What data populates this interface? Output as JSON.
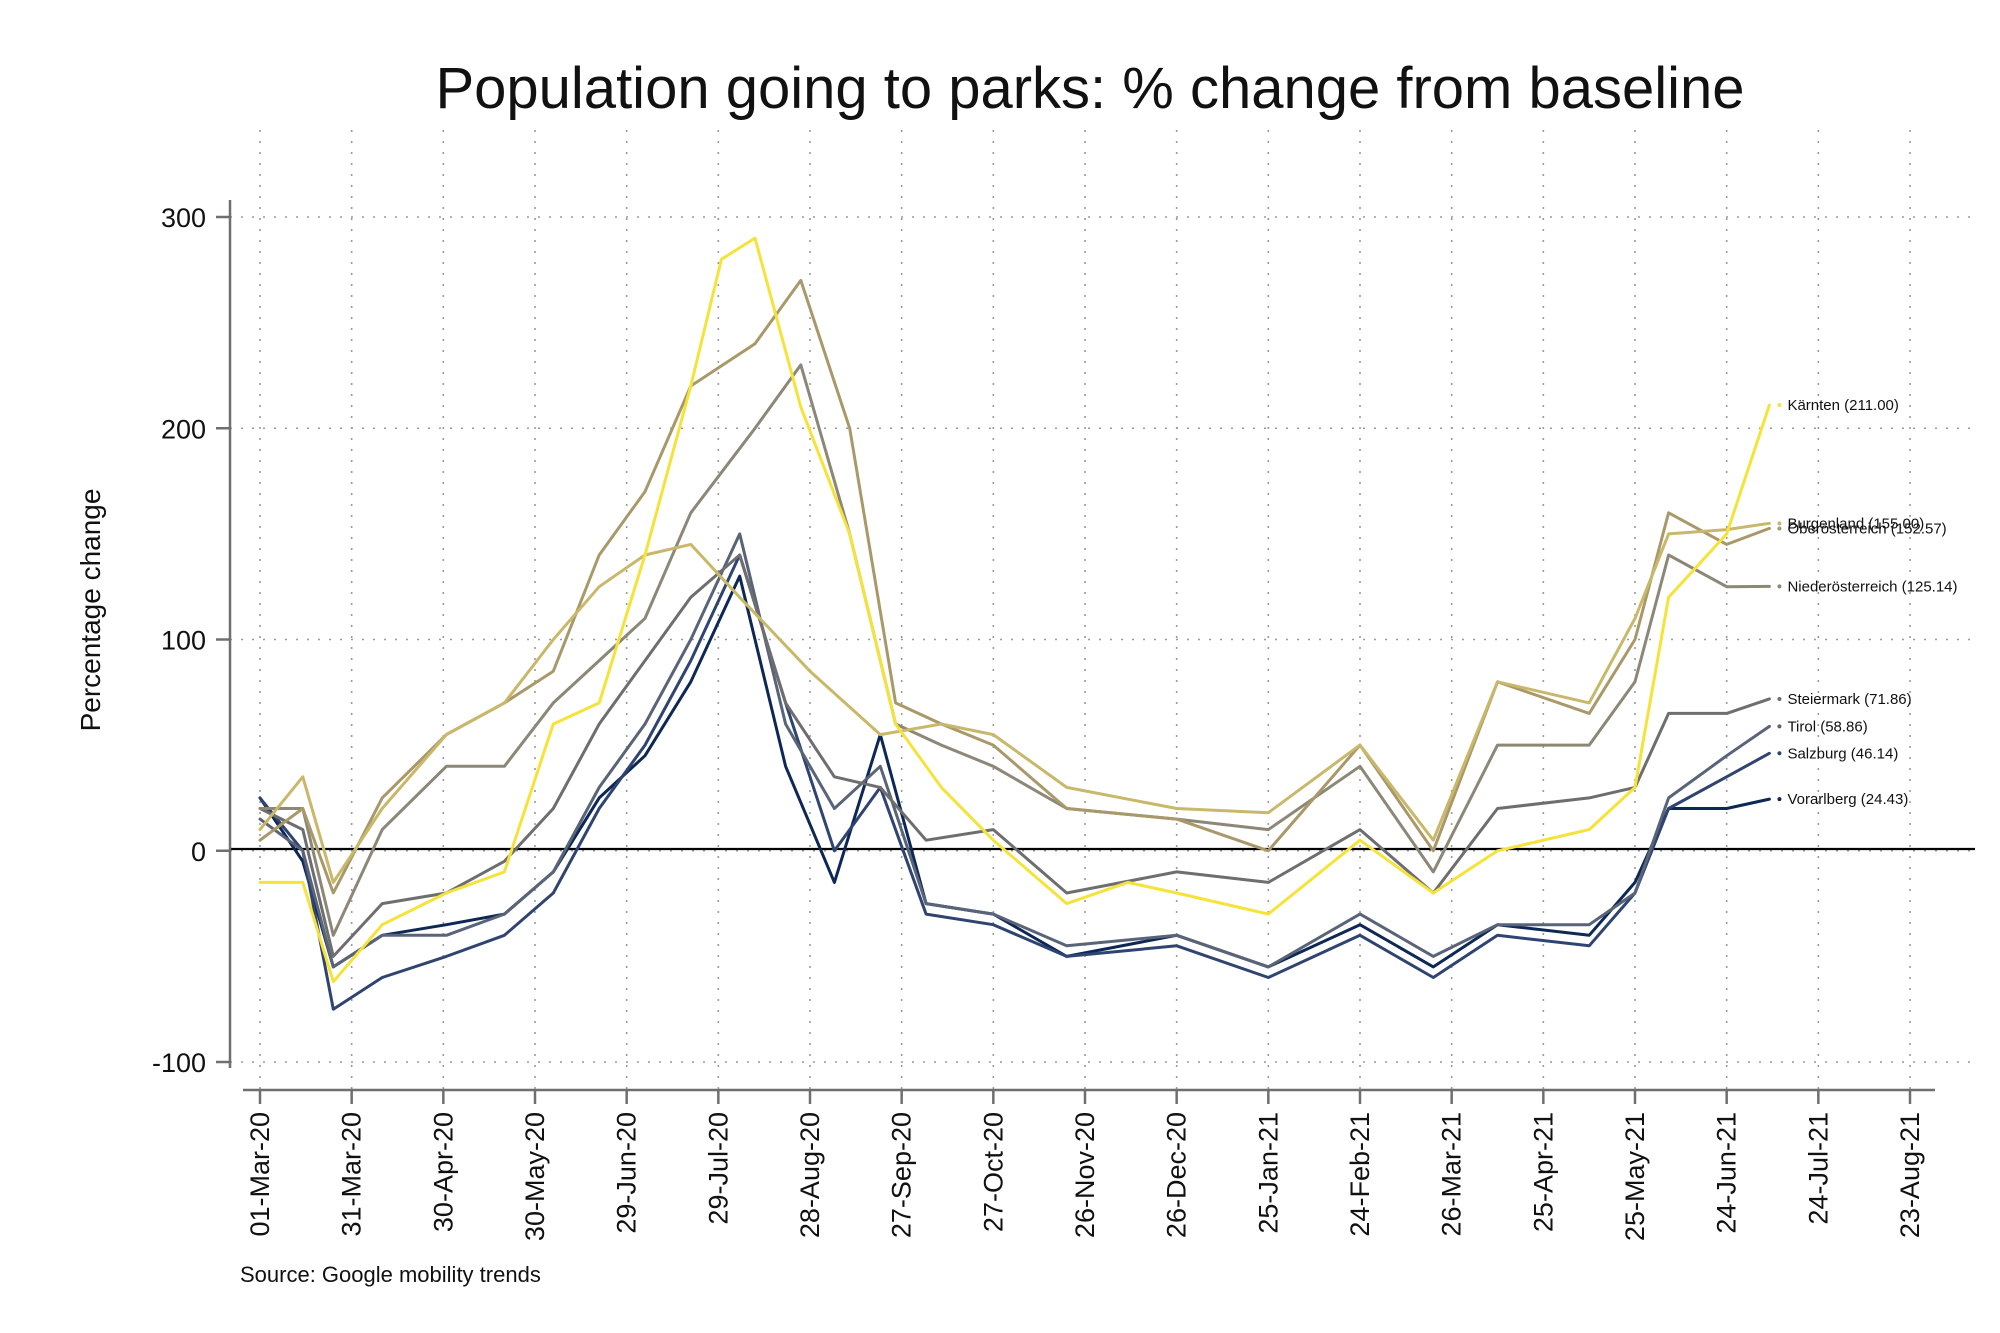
{
  "chart_data": {
    "type": "line",
    "title": "Population going to parks: % change from baseline",
    "ylabel": "Percentage change",
    "xlabel": "",
    "source": "Source: Google mobility trends",
    "ylim": [
      -100,
      300
    ],
    "yticks": [
      -100,
      0,
      100,
      200,
      300
    ],
    "xlim": [
      "2020-03-01",
      "2021-08-23"
    ],
    "xticks": [
      "01-Mar-20",
      "31-Mar-20",
      "30-Apr-20",
      "30-May-20",
      "29-Jun-20",
      "29-Jul-20",
      "28-Aug-20",
      "27-Sep-20",
      "27-Oct-20",
      "26-Nov-20",
      "26-Dec-20",
      "25-Jan-21",
      "24-Feb-21",
      "26-Mar-21",
      "25-Apr-21",
      "25-May-21",
      "24-Jun-21",
      "24-Jul-21",
      "23-Aug-21"
    ],
    "grid": true,
    "legend": "end-of-line labels",
    "series": [
      {
        "name": "Kärnten",
        "label": "Kärnten (211.00)",
        "color": "#f5e33a",
        "points": [
          [
            "2020-03-01",
            -15
          ],
          [
            "2020-03-15",
            -15
          ],
          [
            "2020-03-25",
            -62
          ],
          [
            "2020-04-10",
            -35
          ],
          [
            "2020-05-01",
            -20
          ],
          [
            "2020-05-20",
            -10
          ],
          [
            "2020-06-05",
            60
          ],
          [
            "2020-06-20",
            70
          ],
          [
            "2020-07-05",
            140
          ],
          [
            "2020-07-20",
            220
          ],
          [
            "2020-07-30",
            280
          ],
          [
            "2020-08-10",
            290
          ],
          [
            "2020-08-25",
            210
          ],
          [
            "2020-09-10",
            150
          ],
          [
            "2020-09-25",
            60
          ],
          [
            "2020-10-10",
            30
          ],
          [
            "2020-10-27",
            5
          ],
          [
            "2020-11-20",
            -25
          ],
          [
            "2020-12-10",
            -15
          ],
          [
            "2020-12-26",
            -20
          ],
          [
            "2021-01-25",
            -30
          ],
          [
            "2021-02-24",
            5
          ],
          [
            "2021-03-20",
            -20
          ],
          [
            "2021-04-10",
            0
          ],
          [
            "2021-05-10",
            10
          ],
          [
            "2021-05-25",
            30
          ],
          [
            "2021-06-05",
            120
          ],
          [
            "2021-06-24",
            150
          ],
          [
            "2021-07-08",
            211
          ]
        ]
      },
      {
        "name": "Burgenland",
        "label": "Burgenland (155.00)",
        "color": "#c9b86a",
        "points": [
          [
            "2020-03-01",
            10
          ],
          [
            "2020-03-15",
            35
          ],
          [
            "2020-03-25",
            -15
          ],
          [
            "2020-04-10",
            20
          ],
          [
            "2020-05-01",
            55
          ],
          [
            "2020-05-20",
            70
          ],
          [
            "2020-06-05",
            100
          ],
          [
            "2020-06-20",
            125
          ],
          [
            "2020-07-05",
            140
          ],
          [
            "2020-07-20",
            145
          ],
          [
            "2020-08-05",
            120
          ],
          [
            "2020-08-28",
            85
          ],
          [
            "2020-09-20",
            55
          ],
          [
            "2020-10-10",
            60
          ],
          [
            "2020-10-27",
            55
          ],
          [
            "2020-11-20",
            30
          ],
          [
            "2020-12-26",
            20
          ],
          [
            "2021-01-25",
            18
          ],
          [
            "2021-02-24",
            50
          ],
          [
            "2021-03-20",
            5
          ],
          [
            "2021-04-10",
            80
          ],
          [
            "2021-05-10",
            70
          ],
          [
            "2021-05-25",
            110
          ],
          [
            "2021-06-05",
            150
          ],
          [
            "2021-06-24",
            152
          ],
          [
            "2021-07-08",
            155
          ]
        ]
      },
      {
        "name": "Oberösterreich",
        "label": "Oberösterreich (152.57)",
        "color": "#a9996a",
        "points": [
          [
            "2020-03-01",
            5
          ],
          [
            "2020-03-15",
            20
          ],
          [
            "2020-03-25",
            -20
          ],
          [
            "2020-04-10",
            25
          ],
          [
            "2020-05-01",
            55
          ],
          [
            "2020-05-20",
            70
          ],
          [
            "2020-06-05",
            85
          ],
          [
            "2020-06-20",
            140
          ],
          [
            "2020-07-05",
            170
          ],
          [
            "2020-07-20",
            220
          ],
          [
            "2020-08-10",
            240
          ],
          [
            "2020-08-25",
            270
          ],
          [
            "2020-09-10",
            200
          ],
          [
            "2020-09-25",
            70
          ],
          [
            "2020-10-10",
            60
          ],
          [
            "2020-10-27",
            50
          ],
          [
            "2020-11-20",
            20
          ],
          [
            "2020-12-26",
            15
          ],
          [
            "2021-01-25",
            0
          ],
          [
            "2021-02-24",
            50
          ],
          [
            "2021-03-20",
            0
          ],
          [
            "2021-04-10",
            80
          ],
          [
            "2021-05-10",
            65
          ],
          [
            "2021-05-25",
            100
          ],
          [
            "2021-06-05",
            160
          ],
          [
            "2021-06-24",
            145
          ],
          [
            "2021-07-08",
            152.57
          ]
        ]
      },
      {
        "name": "Niederösterreich",
        "label": "Niederösterreich (125.14)",
        "color": "#8c8776",
        "points": [
          [
            "2020-03-01",
            20
          ],
          [
            "2020-03-15",
            20
          ],
          [
            "2020-03-25",
            -40
          ],
          [
            "2020-04-10",
            10
          ],
          [
            "2020-05-01",
            40
          ],
          [
            "2020-05-20",
            40
          ],
          [
            "2020-06-05",
            70
          ],
          [
            "2020-06-20",
            90
          ],
          [
            "2020-07-05",
            110
          ],
          [
            "2020-07-20",
            160
          ],
          [
            "2020-08-10",
            200
          ],
          [
            "2020-08-25",
            230
          ],
          [
            "2020-09-10",
            150
          ],
          [
            "2020-09-25",
            60
          ],
          [
            "2020-10-10",
            50
          ],
          [
            "2020-10-27",
            40
          ],
          [
            "2020-11-20",
            20
          ],
          [
            "2020-12-26",
            15
          ],
          [
            "2021-01-25",
            10
          ],
          [
            "2021-02-24",
            40
          ],
          [
            "2021-03-20",
            -10
          ],
          [
            "2021-04-10",
            50
          ],
          [
            "2021-05-10",
            50
          ],
          [
            "2021-05-25",
            80
          ],
          [
            "2021-06-05",
            140
          ],
          [
            "2021-06-24",
            125
          ],
          [
            "2021-07-08",
            125.14
          ]
        ]
      },
      {
        "name": "Steiermark",
        "label": "Steiermark (71.86)",
        "color": "#6e6e70",
        "points": [
          [
            "2020-03-01",
            20
          ],
          [
            "2020-03-15",
            10
          ],
          [
            "2020-03-25",
            -50
          ],
          [
            "2020-04-10",
            -25
          ],
          [
            "2020-05-01",
            -20
          ],
          [
            "2020-05-20",
            -5
          ],
          [
            "2020-06-05",
            20
          ],
          [
            "2020-06-20",
            60
          ],
          [
            "2020-07-05",
            90
          ],
          [
            "2020-07-20",
            120
          ],
          [
            "2020-08-05",
            140
          ],
          [
            "2020-08-20",
            70
          ],
          [
            "2020-09-05",
            35
          ],
          [
            "2020-09-20",
            30
          ],
          [
            "2020-10-05",
            5
          ],
          [
            "2020-10-27",
            10
          ],
          [
            "2020-11-20",
            -20
          ],
          [
            "2020-12-26",
            -10
          ],
          [
            "2021-01-25",
            -15
          ],
          [
            "2021-02-24",
            10
          ],
          [
            "2021-03-20",
            -20
          ],
          [
            "2021-04-10",
            20
          ],
          [
            "2021-05-10",
            25
          ],
          [
            "2021-05-25",
            30
          ],
          [
            "2021-06-05",
            65
          ],
          [
            "2021-06-24",
            65
          ],
          [
            "2021-07-08",
            71.86
          ]
        ]
      },
      {
        "name": "Tirol",
        "label": "Tirol (58.86)",
        "color": "#5a6478",
        "points": [
          [
            "2020-03-01",
            15
          ],
          [
            "2020-03-15",
            0
          ],
          [
            "2020-03-25",
            -55
          ],
          [
            "2020-04-10",
            -40
          ],
          [
            "2020-05-01",
            -40
          ],
          [
            "2020-05-20",
            -30
          ],
          [
            "2020-06-05",
            -10
          ],
          [
            "2020-06-20",
            30
          ],
          [
            "2020-07-05",
            60
          ],
          [
            "2020-07-20",
            100
          ],
          [
            "2020-08-05",
            150
          ],
          [
            "2020-08-20",
            60
          ],
          [
            "2020-09-05",
            20
          ],
          [
            "2020-09-20",
            40
          ],
          [
            "2020-10-05",
            -25
          ],
          [
            "2020-10-27",
            -30
          ],
          [
            "2020-11-20",
            -45
          ],
          [
            "2020-12-26",
            -40
          ],
          [
            "2021-01-25",
            -55
          ],
          [
            "2021-02-24",
            -30
          ],
          [
            "2021-03-20",
            -50
          ],
          [
            "2021-04-10",
            -35
          ],
          [
            "2021-05-10",
            -35
          ],
          [
            "2021-05-25",
            -20
          ],
          [
            "2021-06-05",
            25
          ],
          [
            "2021-06-24",
            45
          ],
          [
            "2021-07-08",
            58.86
          ]
        ]
      },
      {
        "name": "Salzburg",
        "label": "Salzburg (46.14)",
        "color": "#2f4470",
        "points": [
          [
            "2020-03-01",
            25
          ],
          [
            "2020-03-15",
            0
          ],
          [
            "2020-03-25",
            -75
          ],
          [
            "2020-04-10",
            -60
          ],
          [
            "2020-05-01",
            -50
          ],
          [
            "2020-05-20",
            -40
          ],
          [
            "2020-06-05",
            -20
          ],
          [
            "2020-06-20",
            20
          ],
          [
            "2020-07-05",
            50
          ],
          [
            "2020-07-20",
            90
          ],
          [
            "2020-08-05",
            140
          ],
          [
            "2020-08-20",
            70
          ],
          [
            "2020-09-05",
            0
          ],
          [
            "2020-09-20",
            30
          ],
          [
            "2020-10-05",
            -30
          ],
          [
            "2020-10-27",
            -35
          ],
          [
            "2020-11-20",
            -50
          ],
          [
            "2020-12-26",
            -45
          ],
          [
            "2021-01-25",
            -60
          ],
          [
            "2021-02-24",
            -40
          ],
          [
            "2021-03-20",
            -60
          ],
          [
            "2021-04-10",
            -40
          ],
          [
            "2021-05-10",
            -45
          ],
          [
            "2021-05-25",
            -20
          ],
          [
            "2021-06-05",
            20
          ],
          [
            "2021-06-24",
            35
          ],
          [
            "2021-07-08",
            46.14
          ]
        ]
      },
      {
        "name": "Vorarlberg",
        "label": "Vorarlberg (24.43)",
        "color": "#0e2855",
        "points": [
          [
            "2020-03-01",
            25
          ],
          [
            "2020-03-15",
            -5
          ],
          [
            "2020-03-25",
            -55
          ],
          [
            "2020-04-10",
            -40
          ],
          [
            "2020-05-01",
            -35
          ],
          [
            "2020-05-20",
            -30
          ],
          [
            "2020-06-05",
            -10
          ],
          [
            "2020-06-20",
            25
          ],
          [
            "2020-07-05",
            45
          ],
          [
            "2020-07-20",
            80
          ],
          [
            "2020-08-05",
            130
          ],
          [
            "2020-08-20",
            40
          ],
          [
            "2020-09-05",
            -15
          ],
          [
            "2020-09-20",
            55
          ],
          [
            "2020-10-05",
            -25
          ],
          [
            "2020-10-27",
            -30
          ],
          [
            "2020-11-20",
            -50
          ],
          [
            "2020-12-26",
            -40
          ],
          [
            "2021-01-25",
            -55
          ],
          [
            "2021-02-24",
            -35
          ],
          [
            "2021-03-20",
            -55
          ],
          [
            "2021-04-10",
            -35
          ],
          [
            "2021-05-10",
            -40
          ],
          [
            "2021-05-25",
            -15
          ],
          [
            "2021-06-05",
            20
          ],
          [
            "2021-06-24",
            20
          ],
          [
            "2021-07-08",
            24.43
          ]
        ]
      }
    ]
  }
}
